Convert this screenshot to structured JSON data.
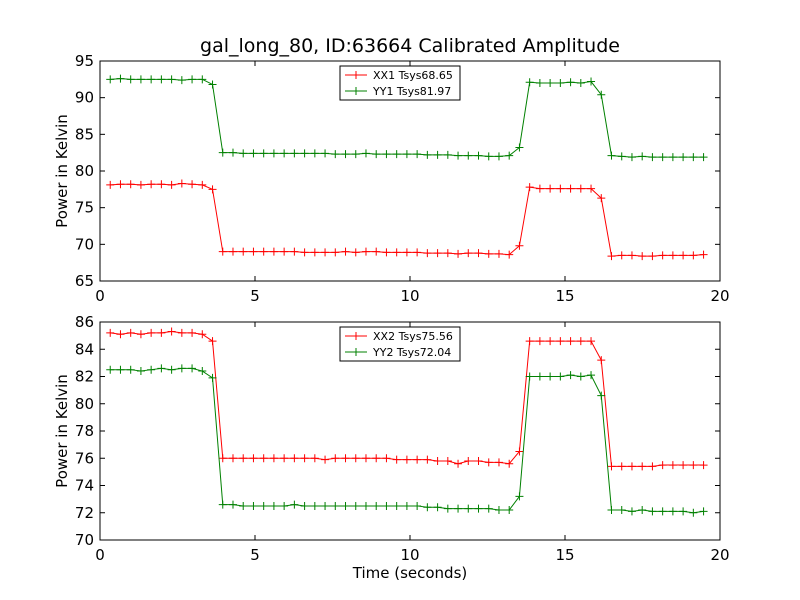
{
  "chart_data": {
    "type": "line",
    "title": "gal_long_80, ID:63664 Calibrated Amplitude",
    "xlabel": "Time (seconds)",
    "colors": {
      "xx": "#ff0000",
      "yy": "#008000"
    },
    "panels": [
      {
        "ylabel": "Power in Kelvin",
        "xlim": [
          0,
          20
        ],
        "ylim": [
          65,
          95
        ],
        "xticks": [
          "0",
          "5",
          "10",
          "15",
          "20"
        ],
        "yticks": [
          "65",
          "70",
          "75",
          "80",
          "85",
          "90",
          "95"
        ],
        "legend_loc": "upper center",
        "series": [
          {
            "name": "XX1 Tsys68.65",
            "color": "#ff0000",
            "x": [
              0.33,
              0.66,
              0.99,
              1.32,
              1.65,
              1.98,
              2.31,
              2.64,
              2.97,
              3.3,
              3.63,
              3.96,
              4.29,
              4.62,
              4.95,
              5.28,
              5.61,
              5.94,
              6.27,
              6.6,
              6.93,
              7.26,
              7.59,
              7.92,
              8.25,
              8.58,
              8.91,
              9.24,
              9.57,
              9.9,
              10.23,
              10.56,
              10.89,
              11.22,
              11.55,
              11.88,
              12.21,
              12.54,
              12.87,
              13.2,
              13.53,
              13.86,
              14.19,
              14.52,
              14.85,
              15.18,
              15.51,
              15.84,
              16.17,
              16.5,
              16.83,
              17.16,
              17.49,
              17.82,
              18.15,
              18.48,
              18.81,
              19.14,
              19.47
            ],
            "y": [
              78.1,
              78.2,
              78.2,
              78.1,
              78.2,
              78.2,
              78.1,
              78.3,
              78.2,
              78.1,
              77.5,
              69.0,
              69.0,
              69.0,
              69.0,
              69.0,
              69.0,
              69.0,
              69.0,
              68.9,
              68.9,
              68.9,
              68.9,
              69.0,
              68.9,
              69.0,
              69.0,
              68.9,
              68.9,
              68.9,
              68.9,
              68.8,
              68.8,
              68.8,
              68.7,
              68.8,
              68.8,
              68.7,
              68.7,
              68.6,
              69.8,
              77.8,
              77.6,
              77.6,
              77.6,
              77.6,
              77.6,
              77.6,
              76.3,
              68.4,
              68.5,
              68.5,
              68.4,
              68.4,
              68.5,
              68.5,
              68.5,
              68.5,
              68.6
            ]
          },
          {
            "name": "YY1 Tsys81.97",
            "color": "#008000",
            "x": [
              0.33,
              0.66,
              0.99,
              1.32,
              1.65,
              1.98,
              2.31,
              2.64,
              2.97,
              3.3,
              3.63,
              3.96,
              4.29,
              4.62,
              4.95,
              5.28,
              5.61,
              5.94,
              6.27,
              6.6,
              6.93,
              7.26,
              7.59,
              7.92,
              8.25,
              8.58,
              8.91,
              9.24,
              9.57,
              9.9,
              10.23,
              10.56,
              10.89,
              11.22,
              11.55,
              11.88,
              12.21,
              12.54,
              12.87,
              13.2,
              13.53,
              13.86,
              14.19,
              14.52,
              14.85,
              15.18,
              15.51,
              15.84,
              16.17,
              16.5,
              16.83,
              17.16,
              17.49,
              17.82,
              18.15,
              18.48,
              18.81,
              19.14,
              19.47
            ],
            "y": [
              92.5,
              92.6,
              92.5,
              92.5,
              92.5,
              92.5,
              92.5,
              92.4,
              92.5,
              92.5,
              91.8,
              82.5,
              82.5,
              82.4,
              82.4,
              82.4,
              82.4,
              82.4,
              82.4,
              82.4,
              82.4,
              82.4,
              82.3,
              82.3,
              82.3,
              82.4,
              82.3,
              82.3,
              82.3,
              82.3,
              82.3,
              82.2,
              82.2,
              82.2,
              82.1,
              82.1,
              82.1,
              82.0,
              82.0,
              82.1,
              83.2,
              92.1,
              92.0,
              92.0,
              92.0,
              92.1,
              92.0,
              92.2,
              90.4,
              82.1,
              82.0,
              81.9,
              82.0,
              81.9,
              81.9,
              81.9,
              81.9,
              81.9,
              81.9
            ]
          }
        ]
      },
      {
        "ylabel": "Power in Kelvin",
        "xlim": [
          0,
          20
        ],
        "ylim": [
          70,
          86
        ],
        "xticks": [
          "0",
          "5",
          "10",
          "15",
          "20"
        ],
        "yticks": [
          "70",
          "72",
          "74",
          "76",
          "78",
          "80",
          "82",
          "84",
          "86"
        ],
        "legend_loc": "upper center",
        "series": [
          {
            "name": "XX2 Tsys75.56",
            "color": "#ff0000",
            "x": [
              0.33,
              0.66,
              0.99,
              1.32,
              1.65,
              1.98,
              2.31,
              2.64,
              2.97,
              3.3,
              3.63,
              3.96,
              4.29,
              4.62,
              4.95,
              5.28,
              5.61,
              5.94,
              6.27,
              6.6,
              6.93,
              7.26,
              7.59,
              7.92,
              8.25,
              8.58,
              8.91,
              9.24,
              9.57,
              9.9,
              10.23,
              10.56,
              10.89,
              11.22,
              11.55,
              11.88,
              12.21,
              12.54,
              12.87,
              13.2,
              13.53,
              13.86,
              14.19,
              14.52,
              14.85,
              15.18,
              15.51,
              15.84,
              16.17,
              16.5,
              16.83,
              17.16,
              17.49,
              17.82,
              18.15,
              18.48,
              18.81,
              19.14,
              19.47
            ],
            "y": [
              85.2,
              85.1,
              85.2,
              85.1,
              85.2,
              85.2,
              85.3,
              85.2,
              85.2,
              85.1,
              84.6,
              76.0,
              76.0,
              76.0,
              76.0,
              76.0,
              76.0,
              76.0,
              76.0,
              76.0,
              76.0,
              75.9,
              76.0,
              76.0,
              76.0,
              76.0,
              76.0,
              76.0,
              75.9,
              75.9,
              75.9,
              75.9,
              75.8,
              75.8,
              75.6,
              75.8,
              75.8,
              75.7,
              75.7,
              75.6,
              76.5,
              84.6,
              84.6,
              84.6,
              84.6,
              84.6,
              84.6,
              84.6,
              83.2,
              75.4,
              75.4,
              75.4,
              75.4,
              75.4,
              75.5,
              75.5,
              75.5,
              75.5,
              75.5
            ]
          },
          {
            "name": "YY2 Tsys72.04",
            "color": "#008000",
            "x": [
              0.33,
              0.66,
              0.99,
              1.32,
              1.65,
              1.98,
              2.31,
              2.64,
              2.97,
              3.3,
              3.63,
              3.96,
              4.29,
              4.62,
              4.95,
              5.28,
              5.61,
              5.94,
              6.27,
              6.6,
              6.93,
              7.26,
              7.59,
              7.92,
              8.25,
              8.58,
              8.91,
              9.24,
              9.57,
              9.9,
              10.23,
              10.56,
              10.89,
              11.22,
              11.55,
              11.88,
              12.21,
              12.54,
              12.87,
              13.2,
              13.53,
              13.86,
              14.19,
              14.52,
              14.85,
              15.18,
              15.51,
              15.84,
              16.17,
              16.5,
              16.83,
              17.16,
              17.49,
              17.82,
              18.15,
              18.48,
              18.81,
              19.14,
              19.47
            ],
            "y": [
              82.5,
              82.5,
              82.5,
              82.4,
              82.5,
              82.6,
              82.5,
              82.6,
              82.6,
              82.4,
              81.9,
              72.6,
              72.6,
              72.5,
              72.5,
              72.5,
              72.5,
              72.5,
              72.6,
              72.5,
              72.5,
              72.5,
              72.5,
              72.5,
              72.5,
              72.5,
              72.5,
              72.5,
              72.5,
              72.5,
              72.5,
              72.4,
              72.4,
              72.3,
              72.3,
              72.3,
              72.3,
              72.3,
              72.2,
              72.2,
              73.2,
              82.0,
              82.0,
              82.0,
              82.0,
              82.1,
              82.0,
              82.1,
              80.6,
              72.2,
              72.2,
              72.1,
              72.2,
              72.1,
              72.1,
              72.1,
              72.1,
              72.0,
              72.1
            ]
          }
        ]
      }
    ]
  }
}
